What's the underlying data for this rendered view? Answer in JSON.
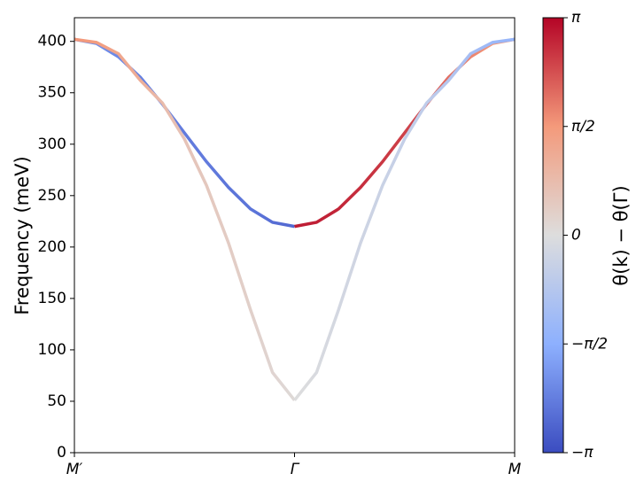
{
  "chart_data": {
    "type": "line",
    "ylabel": "Frequency (meV)",
    "colorbar_label": "θ(k) − θ(Γ)",
    "xlim": [
      0,
      2
    ],
    "ylim": [
      0,
      423
    ],
    "xticks": [
      {
        "value": 0,
        "label": "M′"
      },
      {
        "value": 1,
        "label": "Γ"
      },
      {
        "value": 2,
        "label": "M"
      }
    ],
    "yticks": [
      0,
      50,
      100,
      150,
      200,
      250,
      300,
      350,
      400
    ],
    "cmap": "coolwarm",
    "clim": [
      -3.1416,
      3.1416
    ],
    "cticks": [
      {
        "value": -3.1416,
        "label": "−π"
      },
      {
        "value": -1.5708,
        "label": "−π/2"
      },
      0,
      {
        "value": 1.5708,
        "label": "π/2"
      },
      {
        "value": 3.1416,
        "label": "π"
      }
    ],
    "series": [
      {
        "x": [
          0,
          0.1,
          0.2,
          0.3,
          0.4,
          0.5,
          0.6,
          0.7,
          0.8,
          0.9,
          1
        ],
        "values": [
          402,
          398,
          385,
          365,
          339,
          311,
          283,
          258,
          237,
          224,
          220
        ],
        "color_values": [
          -2.0,
          -2.1,
          -2.2,
          -2.3,
          -2.3,
          -2.4,
          -2.4,
          -2.5,
          -2.5,
          -2.6,
          -2.7
        ]
      },
      {
        "x": [
          1,
          1.1,
          1.2,
          1.3,
          1.4,
          1.5,
          1.6,
          1.7,
          1.8,
          1.9,
          2
        ],
        "values": [
          220,
          224,
          237,
          258,
          283,
          311,
          339,
          365,
          385,
          398,
          402
        ],
        "color_values": [
          2.9,
          2.85,
          2.8,
          2.7,
          2.6,
          2.5,
          2.4,
          2.0,
          1.8,
          1.6,
          1.5
        ]
      },
      {
        "x": [
          0,
          0.1,
          0.2,
          0.3,
          0.4,
          0.5,
          0.6,
          0.7,
          0.8,
          0.9,
          1
        ],
        "values": [
          402,
          399,
          388,
          362,
          340,
          305,
          260,
          204,
          139,
          78,
          51
        ],
        "color_values": [
          1.6,
          1.5,
          1.3,
          1.1,
          0.8,
          0.6,
          0.5,
          0.4,
          0.3,
          0.2,
          0.1
        ]
      },
      {
        "x": [
          1,
          1.1,
          1.2,
          1.3,
          1.4,
          1.5,
          1.6,
          1.7,
          1.8,
          1.9,
          2
        ],
        "values": [
          51,
          78,
          139,
          204,
          260,
          305,
          340,
          362,
          388,
          399,
          402
        ],
        "color_values": [
          0.0,
          -0.1,
          -0.2,
          -0.3,
          -0.4,
          -0.5,
          -0.6,
          -0.8,
          -1.1,
          -1.3,
          -1.4
        ]
      }
    ]
  }
}
